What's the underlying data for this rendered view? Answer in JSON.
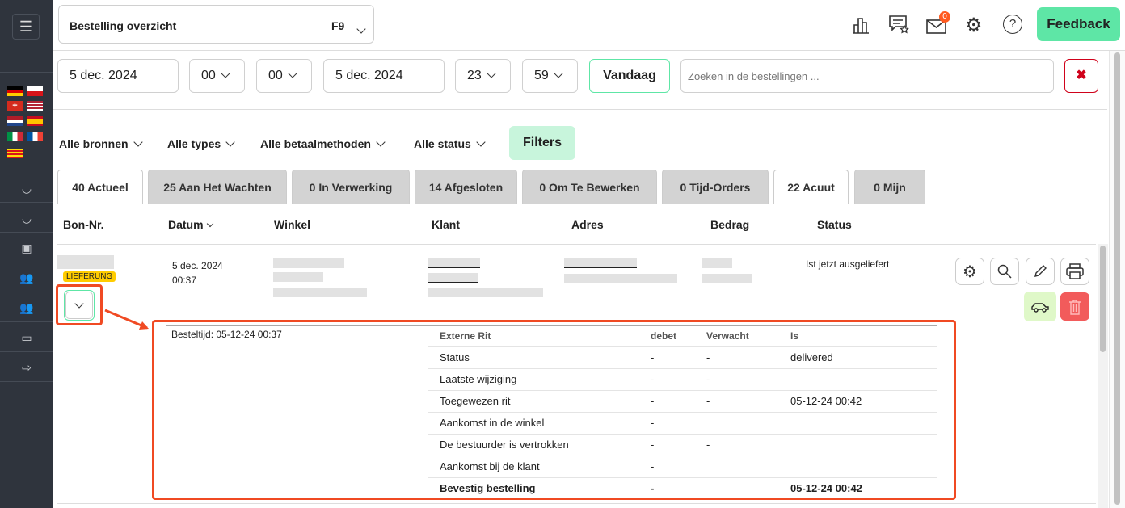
{
  "header": {
    "page_select": "Bestelling overzicht",
    "shortcut": "F9",
    "mail_badge": "0",
    "feedback_label": "Feedback"
  },
  "daterange": {
    "from_date": "5 dec. 2024",
    "from_hour": "00",
    "from_min": "00",
    "to_date": "5 dec. 2024",
    "to_hour": "23",
    "to_min": "59",
    "today_label": "Vandaag",
    "search_placeholder": "Zoeken in de bestellingen ..."
  },
  "filters": {
    "sources": "Alle bronnen",
    "types": "Alle types",
    "payments": "Alle betaalmethoden",
    "status": "Alle status",
    "button": "Filters"
  },
  "tabs": [
    {
      "label": "40 Actueel"
    },
    {
      "label": "25 Aan Het Wachten"
    },
    {
      "label": "0  In Verwerking"
    },
    {
      "label": "14  Afgesloten"
    },
    {
      "label": "0  Om Te Bewerken"
    },
    {
      "label": "0  Tijd-Orders"
    },
    {
      "label": "22 Acuut"
    },
    {
      "label": "0  Mijn"
    }
  ],
  "columns": {
    "bon": "Bon-Nr.",
    "datum": "Datum",
    "winkel": "Winkel",
    "klant": "Klant",
    "adres": "Adres",
    "bedrag": "Bedrag",
    "status": "Status"
  },
  "order": {
    "type_badge": "LIEFERUNG",
    "date": "5 dec. 2024",
    "time": "00:37",
    "status": "Ist jetzt ausgeliefert"
  },
  "details": {
    "order_time": "Besteltijd: 05-12-24 00:37",
    "headers": [
      "Externe Rit",
      "debet",
      "Verwacht",
      "Is"
    ],
    "rows": [
      [
        "Status",
        "-",
        "-",
        "delivered"
      ],
      [
        "Laatste wijziging",
        "-",
        "-",
        ""
      ],
      [
        "Toegewezen rit",
        "-",
        "-",
        "05-12-24 00:42"
      ],
      [
        "Aankomst in de winkel",
        "-",
        "",
        ""
      ],
      [
        "De bestuurder is vertrokken",
        "-",
        "-",
        ""
      ],
      [
        "Aankomst bij de klant",
        "-",
        "",
        ""
      ],
      [
        "Bevestig bestelling",
        "-",
        "",
        "05-12-24 00:42"
      ]
    ]
  },
  "colors": {
    "sidebar": "#2f343d",
    "accent_green": "#5ee6a6",
    "highlight": "#f04a23",
    "badge": "#ffcc00",
    "danger": "#f25b5b"
  }
}
